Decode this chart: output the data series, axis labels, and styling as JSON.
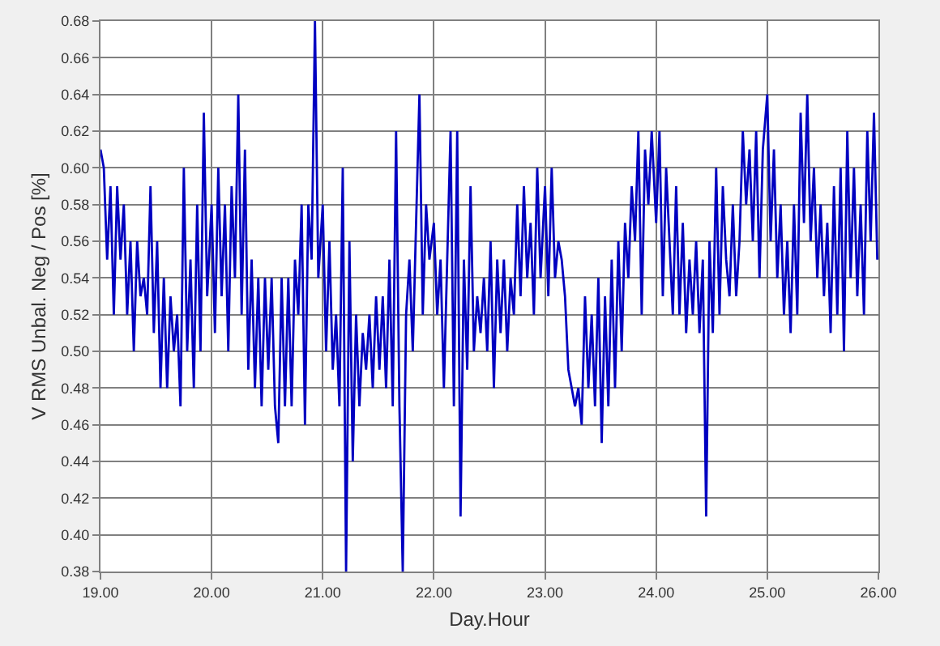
{
  "chart_data": {
    "type": "line",
    "xlabel": "Day.Hour",
    "ylabel": "V RMS Unbal. Neg / Pos [%]",
    "xlim": [
      19,
      26
    ],
    "xticks": [
      {
        "value": 19,
        "label": "19.00"
      },
      {
        "value": 20,
        "label": "20.00"
      },
      {
        "value": 21,
        "label": "21.00"
      },
      {
        "value": 22,
        "label": "22.00"
      },
      {
        "value": 23,
        "label": "23.00"
      },
      {
        "value": 24,
        "label": "24.00"
      },
      {
        "value": 25,
        "label": "25.00"
      },
      {
        "value": 26,
        "label": "26.00"
      }
    ],
    "ylim": [
      0.38,
      0.68
    ],
    "yticks": [
      0.38,
      {
        "value": 0.4,
        "label": "0.40"
      },
      0.42,
      0.44,
      0.46,
      0.48,
      {
        "value": 0.5,
        "label": "0.50"
      },
      0.52,
      0.54,
      0.56,
      0.58,
      {
        "value": 0.6,
        "label": "0.60"
      },
      0.62,
      0.64,
      0.66,
      0.68
    ],
    "grid": true,
    "marker": "none",
    "line_style": "solid",
    "series": [
      {
        "color": "#0000c0",
        "x": [
          19.0,
          19.03,
          19.06,
          19.09,
          19.12,
          19.15,
          19.18,
          19.21,
          19.24,
          19.27,
          19.3,
          19.33,
          19.36,
          19.39,
          19.42,
          19.45,
          19.48,
          19.51,
          19.54,
          19.57,
          19.6,
          19.63,
          19.66,
          19.69,
          19.72,
          19.75,
          19.78,
          19.81,
          19.84,
          19.87,
          19.9,
          19.93,
          19.96,
          20.0,
          20.03,
          20.06,
          20.09,
          20.12,
          20.15,
          20.18,
          20.21,
          20.24,
          20.27,
          20.3,
          20.33,
          20.36,
          20.39,
          20.42,
          20.45,
          20.48,
          20.51,
          20.54,
          20.57,
          20.6,
          20.63,
          20.66,
          20.69,
          20.72,
          20.75,
          20.78,
          20.81,
          20.84,
          20.87,
          20.9,
          20.93,
          20.96,
          21.0,
          21.03,
          21.06,
          21.09,
          21.12,
          21.15,
          21.18,
          21.21,
          21.24,
          21.27,
          21.3,
          21.33,
          21.36,
          21.39,
          21.42,
          21.45,
          21.48,
          21.51,
          21.54,
          21.57,
          21.6,
          21.63,
          21.66,
          21.69,
          21.72,
          21.75,
          21.78,
          21.81,
          21.84,
          21.87,
          21.9,
          21.93,
          21.96,
          22.0,
          22.03,
          22.06,
          22.09,
          22.12,
          22.15,
          22.18,
          22.21,
          22.24,
          22.27,
          22.3,
          22.33,
          22.36,
          22.39,
          22.42,
          22.45,
          22.48,
          22.51,
          22.54,
          22.57,
          22.6,
          22.63,
          22.66,
          22.69,
          22.72,
          22.75,
          22.78,
          22.81,
          22.84,
          22.87,
          22.9,
          22.93,
          22.96,
          23.0,
          23.03,
          23.06,
          23.09,
          23.12,
          23.15,
          23.18,
          23.21,
          23.24,
          23.27,
          23.3,
          23.33,
          23.36,
          23.39,
          23.42,
          23.45,
          23.48,
          23.51,
          23.54,
          23.57,
          23.6,
          23.63,
          23.66,
          23.69,
          23.72,
          23.75,
          23.78,
          23.81,
          23.84,
          23.87,
          23.9,
          23.93,
          23.96,
          24.0,
          24.03,
          24.06,
          24.09,
          24.12,
          24.15,
          24.18,
          24.21,
          24.24,
          24.27,
          24.3,
          24.33,
          24.36,
          24.39,
          24.42,
          24.45,
          24.48,
          24.51,
          24.54,
          24.57,
          24.6,
          24.63,
          24.66,
          24.69,
          24.72,
          24.75,
          24.78,
          24.81,
          24.84,
          24.87,
          24.9,
          24.93,
          24.96,
          25.0,
          25.03,
          25.06,
          25.09,
          25.12,
          25.15,
          25.18,
          25.21,
          25.24,
          25.27,
          25.3,
          25.33,
          25.36,
          25.39,
          25.42,
          25.45,
          25.48,
          25.51,
          25.54,
          25.57,
          25.6,
          25.63,
          25.66,
          25.69,
          25.72,
          25.75,
          25.78,
          25.81,
          25.84,
          25.87,
          25.9,
          25.93,
          25.96,
          25.99
        ],
        "values": [
          0.61,
          0.6,
          0.55,
          0.59,
          0.52,
          0.59,
          0.55,
          0.58,
          0.52,
          0.56,
          0.5,
          0.56,
          0.53,
          0.54,
          0.52,
          0.59,
          0.51,
          0.56,
          0.48,
          0.54,
          0.48,
          0.53,
          0.5,
          0.52,
          0.47,
          0.6,
          0.5,
          0.55,
          0.48,
          0.58,
          0.5,
          0.63,
          0.53,
          0.58,
          0.51,
          0.6,
          0.53,
          0.58,
          0.5,
          0.59,
          0.54,
          0.64,
          0.52,
          0.61,
          0.49,
          0.55,
          0.48,
          0.54,
          0.47,
          0.54,
          0.49,
          0.54,
          0.47,
          0.45,
          0.54,
          0.47,
          0.54,
          0.47,
          0.55,
          0.52,
          0.58,
          0.46,
          0.58,
          0.55,
          0.68,
          0.54,
          0.58,
          0.5,
          0.56,
          0.49,
          0.52,
          0.47,
          0.6,
          0.38,
          0.56,
          0.44,
          0.52,
          0.47,
          0.51,
          0.49,
          0.52,
          0.48,
          0.53,
          0.49,
          0.53,
          0.48,
          0.55,
          0.47,
          0.62,
          0.47,
          0.38,
          0.52,
          0.55,
          0.5,
          0.57,
          0.64,
          0.52,
          0.58,
          0.55,
          0.57,
          0.52,
          0.55,
          0.48,
          0.55,
          0.62,
          0.47,
          0.62,
          0.41,
          0.55,
          0.49,
          0.59,
          0.5,
          0.53,
          0.51,
          0.54,
          0.5,
          0.56,
          0.48,
          0.55,
          0.51,
          0.55,
          0.5,
          0.54,
          0.52,
          0.58,
          0.53,
          0.59,
          0.54,
          0.57,
          0.52,
          0.6,
          0.54,
          0.59,
          0.53,
          0.6,
          0.54,
          0.56,
          0.55,
          0.53,
          0.49,
          0.48,
          0.47,
          0.48,
          0.46,
          0.53,
          0.48,
          0.52,
          0.47,
          0.54,
          0.45,
          0.53,
          0.47,
          0.55,
          0.48,
          0.56,
          0.5,
          0.57,
          0.54,
          0.59,
          0.56,
          0.62,
          0.52,
          0.61,
          0.58,
          0.62,
          0.57,
          0.62,
          0.53,
          0.6,
          0.56,
          0.52,
          0.59,
          0.52,
          0.57,
          0.51,
          0.55,
          0.52,
          0.56,
          0.51,
          0.55,
          0.41,
          0.56,
          0.51,
          0.6,
          0.52,
          0.59,
          0.55,
          0.53,
          0.58,
          0.53,
          0.56,
          0.62,
          0.58,
          0.61,
          0.56,
          0.62,
          0.54,
          0.61,
          0.64,
          0.56,
          0.61,
          0.54,
          0.58,
          0.52,
          0.56,
          0.51,
          0.58,
          0.52,
          0.63,
          0.57,
          0.64,
          0.56,
          0.6,
          0.54,
          0.58,
          0.53,
          0.57,
          0.51,
          0.59,
          0.52,
          0.6,
          0.5,
          0.62,
          0.54,
          0.6,
          0.53,
          0.58,
          0.52,
          0.62,
          0.56,
          0.63,
          0.55
        ]
      }
    ]
  }
}
